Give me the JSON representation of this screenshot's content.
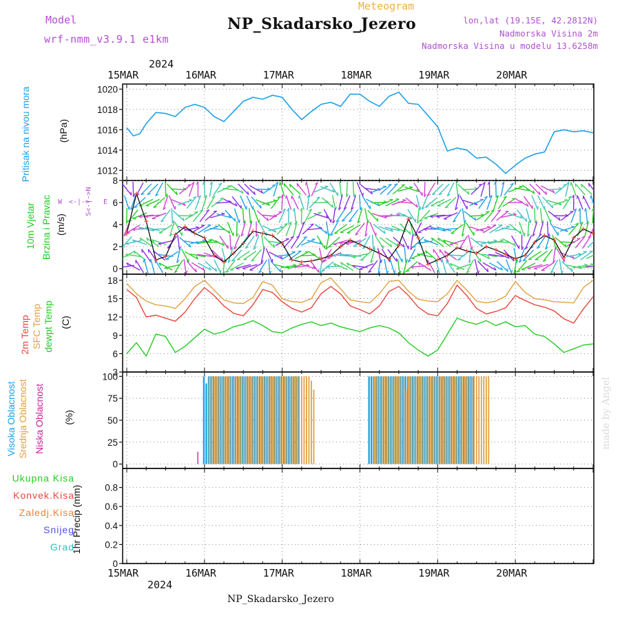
{
  "header": {
    "model_label": "Model",
    "model_name": "wrf-nmm_v3.9.1 e1km",
    "meteogram_label": "Meteogram",
    "station_title": "NP_Skadarsko_Jezero",
    "lonlat": "lon,lat (19.15E, 42.2812N)",
    "altitude": "Nadmorska Visina 2m",
    "model_altitude": "Nadmorska Visina u modelu 13.6258m",
    "footer_station": "NP_Skadarsko_Jezero",
    "watermark": "made by Angel"
  },
  "colors": {
    "pressure": "#1ea0e6",
    "temp2m": "#e8463c",
    "sfc_temp": "#e0a040",
    "dewpoint": "#22cc22",
    "high_cloud": "#1ea0e6",
    "mid_cloud": "#e0a040",
    "low_cloud": "#cc2299",
    "label_purple": "#b050d0",
    "label_orange": "#f0b040"
  },
  "axis_labels": {
    "pressure_name": "Pritisak na nivou mora",
    "pressure_unit": "(hPa)",
    "wind_name1": "10m Vjetar",
    "wind_name2": "Brzina i Pravac",
    "wind_unit": "(m/s)",
    "compass_w": "W",
    "compass_e": "E",
    "compass_arrow": "<-|->",
    "compass_vert": "S<-|->N",
    "temp_name1": "2m Temp",
    "temp_name2": "SFC Temp",
    "temp_name3": "dewpt Temp",
    "temp_unit": "(C)",
    "cloud_high": "Visoka Oblacnost",
    "cloud_mid": "Srednja Oblacnost",
    "cloud_low": "Niska Oblacnost",
    "cloud_unit": "(%)",
    "precip_total": "Ukupna Kisa",
    "precip_conv": "Konvek.Kisa",
    "precip_frozen": "Zaledj.Kisa",
    "precip_snow": "Snijeg",
    "precip_grad": "Grad",
    "precip_unit": "1hr Precip (mm)"
  },
  "time_axis": {
    "year": "2024",
    "days": [
      "15MAR",
      "16MAR",
      "17MAR",
      "18MAR",
      "19MAR",
      "20MAR"
    ],
    "start_hour": 0,
    "end_hour": 144
  },
  "chart_data": [
    {
      "type": "line",
      "panel": "pressure",
      "ylabel": "(hPa)",
      "ylim": [
        1011,
        1020.5
      ],
      "yticks": [
        1012,
        1014,
        1016,
        1018,
        1020
      ],
      "grid": true,
      "x_hours": [
        0,
        2,
        4,
        6,
        9,
        12,
        15,
        18,
        21,
        24,
        27,
        30,
        33,
        36,
        39,
        42,
        45,
        48,
        51,
        54,
        57,
        60,
        63,
        66,
        69,
        72,
        75,
        78,
        81,
        84,
        87,
        90,
        93,
        96,
        99,
        102,
        105,
        108,
        111,
        114,
        117,
        120,
        123,
        126,
        129,
        132,
        135,
        138,
        141,
        144
      ],
      "series": [
        {
          "values": [
            1016.2,
            1015.4,
            1015.6,
            1016.6,
            1017.7,
            1017.6,
            1017.3,
            1018.2,
            1018.5,
            1018.2,
            1017.3,
            1016.8,
            1017.8,
            1018.8,
            1019.2,
            1019.0,
            1019.4,
            1019.2,
            1018.0,
            1017.0,
            1017.8,
            1018.5,
            1018.7,
            1018.3,
            1019.5,
            1019.5,
            1018.8,
            1018.3,
            1019.3,
            1019.7,
            1018.6,
            1018.5,
            1017.4,
            1016.3,
            1013.9,
            1014.2,
            1014.0,
            1013.2,
            1013.3,
            1012.6,
            1011.7,
            1012.5,
            1013.2,
            1013.6,
            1013.8,
            1015.8,
            1016.0,
            1015.8,
            1015.9,
            1015.7
          ]
        }
      ]
    },
    {
      "type": "line",
      "panel": "wind",
      "ylabel": "(m/s)",
      "ylim": [
        -0.5,
        8
      ],
      "yticks": [
        0,
        2,
        4,
        6,
        8
      ],
      "grid": true,
      "x_hours": [
        0,
        3,
        6,
        9,
        12,
        15,
        18,
        21,
        24,
        27,
        30,
        33,
        36,
        39,
        42,
        45,
        48,
        51,
        54,
        57,
        60,
        63,
        66,
        69,
        72,
        75,
        78,
        81,
        84,
        87,
        90,
        93,
        96,
        99,
        102,
        105,
        108,
        111,
        114,
        117,
        120,
        123,
        126,
        129,
        132,
        135,
        138,
        141,
        144
      ],
      "series": [
        {
          "values": [
            3.2,
            6.8,
            4.3,
            0.8,
            1.1,
            3.1,
            3.8,
            3.2,
            2.8,
            1.2,
            0.6,
            1.4,
            2.3,
            3.4,
            3.2,
            3.0,
            2.3,
            0.8,
            0.6,
            0.7,
            0.9,
            1.2,
            2.0,
            2.6,
            2.2,
            1.8,
            1.4,
            0.9,
            2.1,
            4.5,
            2.8,
            0.4,
            0.8,
            1.2,
            1.9,
            1.6,
            1.4,
            2.0,
            1.7,
            1.3,
            0.9,
            1.2,
            2.4,
            3.0,
            2.6,
            1.0,
            2.8,
            3.6,
            3.2
          ]
        }
      ]
    },
    {
      "type": "line",
      "panel": "temperature",
      "ylabel": "(C)",
      "ylim": [
        3,
        19
      ],
      "yticks": [
        3,
        6,
        9,
        12,
        15,
        18
      ],
      "grid": true,
      "x_hours": [
        0,
        3,
        6,
        9,
        12,
        15,
        18,
        21,
        24,
        27,
        30,
        33,
        36,
        39,
        42,
        45,
        48,
        51,
        54,
        57,
        60,
        63,
        66,
        69,
        72,
        75,
        78,
        81,
        84,
        87,
        90,
        93,
        96,
        99,
        102,
        105,
        108,
        111,
        114,
        117,
        120,
        123,
        126,
        129,
        132,
        135,
        138,
        141,
        144
      ],
      "series": [
        {
          "name": "2m Temp",
          "values": [
            16.5,
            15.2,
            12.0,
            12.3,
            11.8,
            11.3,
            12.8,
            15.0,
            16.8,
            15.5,
            13.8,
            12.6,
            12.2,
            14.0,
            16.5,
            16.0,
            14.5,
            13.4,
            12.8,
            13.5,
            15.8,
            17.0,
            15.8,
            13.8,
            13.2,
            12.5,
            13.8,
            16.2,
            17.0,
            15.5,
            13.6,
            12.5,
            12.2,
            14.2,
            17.2,
            15.5,
            13.4,
            12.5,
            12.9,
            13.5,
            15.5,
            14.7,
            14.0,
            13.6,
            13.0,
            11.7,
            11.0,
            13.3,
            15.3
          ]
        },
        {
          "name": "SFC Temp",
          "values": [
            17.5,
            15.8,
            14.6,
            14.0,
            13.8,
            13.4,
            15.0,
            17.0,
            18.0,
            16.4,
            14.8,
            14.3,
            14.2,
            15.2,
            17.8,
            17.2,
            15.0,
            14.5,
            14.4,
            15.0,
            17.6,
            18.4,
            16.6,
            14.8,
            14.5,
            14.3,
            15.8,
            17.8,
            18.0,
            16.2,
            14.9,
            14.6,
            14.5,
            15.8,
            18.0,
            16.4,
            14.6,
            14.3,
            14.6,
            15.4,
            17.8,
            16.0,
            15.0,
            14.8,
            14.5,
            14.4,
            14.3,
            16.8,
            18.0
          ]
        },
        {
          "name": "dewpt Temp",
          "values": [
            6.0,
            7.8,
            5.6,
            9.2,
            8.8,
            6.2,
            7.2,
            8.6,
            10.0,
            9.2,
            9.6,
            10.4,
            10.8,
            11.4,
            10.6,
            9.6,
            9.4,
            10.2,
            10.8,
            11.2,
            10.6,
            11.0,
            10.4,
            10.0,
            9.6,
            10.2,
            10.6,
            10.2,
            9.4,
            7.8,
            6.6,
            5.6,
            6.6,
            9.2,
            11.8,
            11.2,
            10.8,
            11.4,
            10.6,
            11.2,
            10.4,
            10.6,
            9.2,
            8.8,
            7.6,
            6.2,
            6.8,
            7.4,
            7.6
          ]
        }
      ]
    },
    {
      "type": "bar",
      "panel": "clouds",
      "ylabel": "(%)",
      "ylim": [
        -5,
        105
      ],
      "yticks": [
        0,
        25,
        50,
        75,
        100
      ],
      "grid": true,
      "x_start_hour": 0,
      "x_step_hours": 1,
      "series": [
        {
          "name": "Visoka Oblacnost",
          "values": [
            0,
            0,
            0,
            0,
            0,
            0,
            0,
            0,
            0,
            0,
            0,
            0,
            0,
            0,
            0,
            0,
            0,
            0,
            0,
            0,
            0,
            0,
            0,
            0,
            0,
            0,
            0,
            0,
            0,
            0,
            0,
            0,
            100,
            92,
            100,
            100,
            100,
            100,
            100,
            100,
            100,
            100,
            100,
            100,
            100,
            100,
            100,
            100,
            100,
            100,
            100,
            100,
            100,
            100,
            100,
            100,
            100,
            100,
            100,
            100,
            100,
            100,
            100,
            100,
            100,
            100,
            100,
            100,
            100,
            100,
            100,
            100,
            0,
            0,
            0,
            0,
            0,
            0,
            0,
            0,
            0,
            0,
            0,
            0,
            0,
            0,
            0,
            0,
            0,
            0,
            0,
            0,
            0,
            0,
            0,
            0,
            0,
            0,
            0,
            0,
            100,
            100,
            100,
            100,
            100,
            100,
            100,
            100,
            100,
            100,
            100,
            100,
            100,
            100,
            100,
            100,
            100,
            100,
            100,
            100,
            100,
            100,
            100,
            100,
            100,
            100,
            100,
            100,
            100,
            100,
            100,
            100,
            100,
            100,
            100,
            100,
            100,
            100,
            100,
            100,
            100,
            100,
            100,
            100,
            0,
            0,
            0,
            0,
            0,
            0,
            0,
            0,
            0,
            0,
            0,
            0,
            0,
            0,
            0,
            0,
            0,
            0,
            0,
            0,
            0,
            0,
            0,
            0,
            0,
            0,
            0,
            0,
            0,
            0,
            0,
            0,
            0,
            0,
            0,
            0,
            0,
            0,
            0,
            0,
            0,
            0,
            0,
            0,
            0,
            0,
            0,
            0,
            0,
            0,
            0,
            0,
            0,
            0,
            0
          ]
        },
        {
          "name": "Srednja Oblacnost",
          "values": [
            0,
            0,
            0,
            0,
            0,
            0,
            0,
            0,
            0,
            0,
            0,
            0,
            0,
            0,
            0,
            0,
            0,
            0,
            0,
            0,
            0,
            0,
            0,
            0,
            0,
            0,
            0,
            0,
            0,
            0,
            0,
            0,
            0,
            0,
            100,
            100,
            100,
            100,
            100,
            100,
            100,
            100,
            100,
            100,
            100,
            100,
            100,
            100,
            100,
            100,
            100,
            100,
            100,
            100,
            100,
            100,
            100,
            100,
            100,
            100,
            100,
            100,
            100,
            100,
            100,
            100,
            100,
            100,
            100,
            100,
            100,
            100,
            100,
            100,
            100,
            100,
            95,
            85,
            0,
            0,
            0,
            0,
            0,
            0,
            0,
            0,
            0,
            0,
            0,
            0,
            0,
            0,
            0,
            0,
            0,
            0,
            0,
            0,
            0,
            0,
            0,
            0,
            100,
            100,
            100,
            100,
            100,
            100,
            100,
            100,
            100,
            100,
            100,
            100,
            100,
            85,
            100,
            100,
            100,
            100,
            100,
            100,
            100,
            100,
            100,
            100,
            100,
            100,
            100,
            100,
            100,
            100,
            100,
            100,
            100,
            100,
            100,
            100,
            100,
            100,
            100,
            100,
            100,
            100,
            100,
            100,
            100,
            100,
            100,
            100,
            0,
            0,
            0,
            0,
            0,
            0,
            0,
            0,
            0,
            0,
            0,
            0,
            0,
            0,
            0,
            0,
            0,
            0,
            0,
            0,
            0,
            0,
            0,
            0,
            0,
            0,
            0,
            0,
            0,
            0,
            0,
            0,
            0,
            0,
            0,
            0,
            0,
            0,
            0,
            0,
            0
          ]
        },
        {
          "name": "Niska Oblacnost",
          "values": [
            0,
            0,
            0,
            0,
            0,
            0,
            0,
            0,
            0,
            0,
            0,
            0,
            0,
            0,
            0,
            0,
            0,
            0,
            0,
            0,
            0,
            0,
            0,
            0,
            0,
            0,
            0,
            0,
            0,
            14,
            0,
            0,
            0,
            0,
            0,
            0,
            0,
            0,
            0,
            0,
            0,
            0,
            0,
            0,
            0,
            0,
            0,
            0,
            0,
            0,
            0,
            0,
            0,
            0,
            0,
            0,
            0,
            0,
            0,
            0,
            0,
            0,
            0,
            0,
            0,
            0,
            0,
            0,
            0,
            0,
            0,
            0,
            0,
            0,
            0,
            0,
            0,
            0,
            0,
            0,
            0,
            0,
            0,
            0,
            0,
            0,
            0,
            0,
            0,
            0,
            0,
            0,
            0,
            0,
            0,
            0,
            0,
            0,
            0,
            0,
            0,
            0,
            0,
            0,
            0,
            0,
            0,
            0,
            0,
            0,
            0,
            0,
            0,
            0,
            0,
            0,
            0,
            0,
            0,
            0,
            0,
            0,
            0,
            0,
            0,
            0,
            0,
            0,
            0,
            0,
            0,
            0,
            0,
            0,
            0,
            0,
            0,
            0,
            0,
            0,
            0,
            0,
            0,
            0,
            0,
            0,
            0,
            0,
            0,
            0,
            0,
            0,
            0,
            0,
            0,
            0,
            0,
            0,
            0,
            0,
            0,
            0,
            0,
            0,
            0,
            0,
            0,
            0,
            0,
            0,
            0,
            0,
            0,
            0,
            0,
            0,
            0,
            0,
            0,
            0,
            0,
            0,
            0,
            0,
            0,
            0,
            0,
            0,
            0,
            0,
            0,
            0,
            0,
            0
          ]
        }
      ]
    },
    {
      "type": "bar",
      "panel": "precipitation",
      "ylabel": "1hr Precip (mm)",
      "ylim": [
        0,
        1
      ],
      "yticks": [
        0,
        0.2,
        0.4,
        0.6,
        0.8
      ],
      "grid": true,
      "series": [
        {
          "name": "Ukupna Kisa",
          "values": []
        }
      ]
    }
  ]
}
